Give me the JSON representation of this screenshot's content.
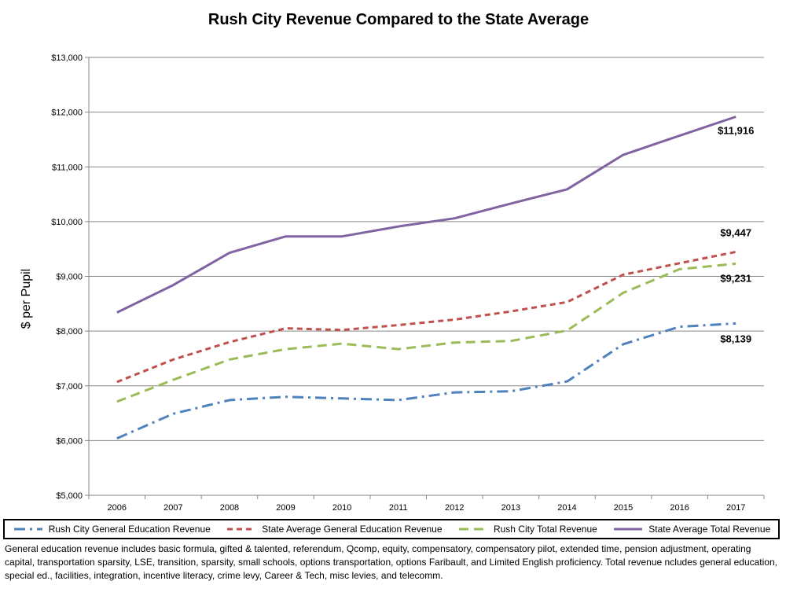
{
  "chart_data": {
    "type": "line",
    "title": "Rush City Revenue Compared to the State Average",
    "xlabel": "",
    "ylabel": "$ per Pupil",
    "categories": [
      "2006",
      "2007",
      "2008",
      "2009",
      "2010",
      "2011",
      "2012",
      "2013",
      "2014",
      "2015",
      "2016",
      "2017"
    ],
    "ylim": [
      5000,
      13000
    ],
    "yticks": [
      "$5,000",
      "$6,000",
      "$7,000",
      "$8,000",
      "$9,000",
      "$10,000",
      "$11,000",
      "$12,000",
      "$13,000"
    ],
    "grid": true,
    "legend": "bottom",
    "series": [
      {
        "name": "Rush City General Education Revenue",
        "color": "#4f81bd",
        "dash": "dashdot",
        "values": [
          6040,
          6490,
          6740,
          6800,
          6770,
          6740,
          6880,
          6900,
          7080,
          7760,
          8080,
          8139
        ]
      },
      {
        "name": "State Average General Education Revenue",
        "color": "#c0504d",
        "dash": "dash",
        "values": [
          7070,
          7480,
          7800,
          8050,
          8020,
          8110,
          8210,
          8360,
          8530,
          9030,
          9240,
          9447
        ]
      },
      {
        "name": "Rush City Total Revenue",
        "color": "#9bbb59",
        "dash": "longdash",
        "values": [
          6710,
          7110,
          7480,
          7670,
          7770,
          7670,
          7790,
          7820,
          8010,
          8700,
          9130,
          9231
        ]
      },
      {
        "name": "State Average Total Revenue",
        "color": "#8064a2",
        "dash": "solid",
        "values": [
          8340,
          8840,
          9430,
          9730,
          9730,
          9910,
          10060,
          10330,
          10590,
          11220,
          11570,
          11916
        ]
      }
    ],
    "annotations": [
      {
        "text": "$11,916",
        "series": 3
      },
      {
        "text": "$9,447",
        "series": 1
      },
      {
        "text": "$9,231",
        "series": 2
      },
      {
        "text": "$8,139",
        "series": 0
      }
    ]
  },
  "footnote": "General education revenue includes basic formula, gifted & talented, referendum, Qcomp, equity, compensatory, compensatory pilot, extended time, pension adjustment, operating capital, transportation sparsity, LSE, transition, sparsity, small schools, options transportation, options Faribault, and Limited English proficiency.  Total revenue ncludes general education, special ed., facilities, integration, incentive literacy, crime levy, Career & Tech, misc levies, and telecomm."
}
